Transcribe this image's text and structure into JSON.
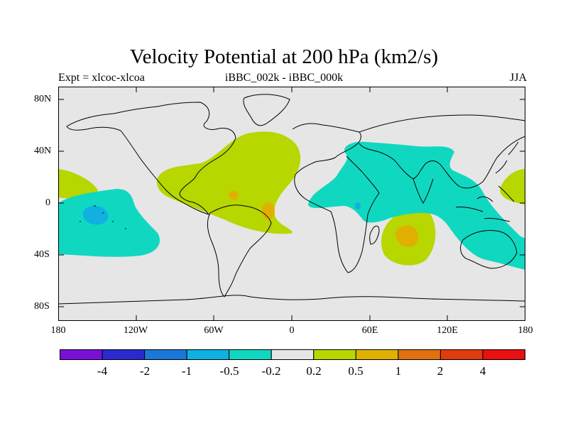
{
  "title": "Velocity Potential at 200 hPa (km2/s)",
  "left_string": "Expt = xlcoc-xlcoa",
  "center_string": "iBBC_002k - iBBC_000k",
  "right_string": "JJA",
  "lat_labels": [
    "80N",
    "40N",
    "0",
    "40S",
    "80S"
  ],
  "lon_labels": [
    "180",
    "120W",
    "60W",
    "0",
    "60E",
    "120E",
    "180"
  ],
  "colorbar": {
    "colors": [
      "#7a10d8",
      "#2a2ad0",
      "#1a78d8",
      "#10b0e0",
      "#10d8c0",
      "#e6e6e6",
      "#b8d600",
      "#e0b000",
      "#e07010",
      "#e03c10",
      "#e81010"
    ],
    "labels": [
      "-4",
      "-2",
      "-1",
      "-0.5",
      "-0.2",
      "0.2",
      "0.5",
      "1",
      "2",
      "4"
    ]
  },
  "colors": {
    "background_field": "#e6e6e6",
    "positive_0_2": "#b8d600",
    "positive_0_5": "#e0b000",
    "negative_0_2": "#10d8c0",
    "negative_0_5": "#10b0e0",
    "negative_1": "#1a78d8",
    "coastline": "#000000"
  }
}
